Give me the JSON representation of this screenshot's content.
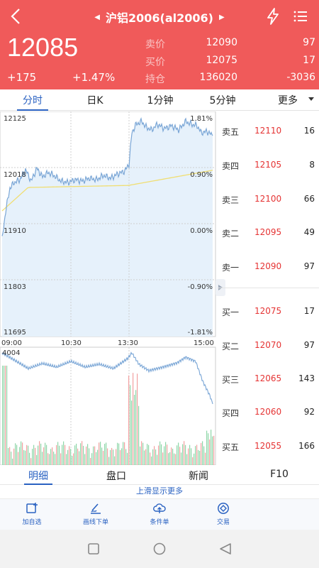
{
  "header": {
    "title": "沪铝2006(al2006)",
    "last_price": "12085",
    "change": "+175",
    "change_pct": "+1.47%",
    "quote_rows": [
      {
        "label": "卖价",
        "price": "12090",
        "volume": "97"
      },
      {
        "label": "买价",
        "price": "12075",
        "volume": "17"
      },
      {
        "label": "持仓",
        "price": "136020",
        "volume": "-3036"
      }
    ]
  },
  "tabs": {
    "items": [
      "分时",
      "日K",
      "1分钟",
      "5分钟",
      "更多"
    ],
    "active": "分时"
  },
  "price_chart": {
    "y_labels": [
      "12125",
      "12018",
      "11910",
      "11803",
      "11695"
    ],
    "pct_labels": [
      "1.81%",
      "0.90%",
      "0.00%",
      "-0.90%",
      "-1.81%"
    ],
    "x_labels": [
      "09:00",
      "10:30",
      "13:30",
      "15:00"
    ]
  },
  "volume_chart": {
    "max_label": "4004"
  },
  "order_book": {
    "asks": [
      {
        "label": "卖五",
        "price": "12110",
        "volume": "16"
      },
      {
        "label": "卖四",
        "price": "12105",
        "volume": "8"
      },
      {
        "label": "卖三",
        "price": "12100",
        "volume": "66"
      },
      {
        "label": "卖二",
        "price": "12095",
        "volume": "49"
      },
      {
        "label": "卖一",
        "price": "12090",
        "volume": "97"
      }
    ],
    "bids": [
      {
        "label": "买一",
        "price": "12075",
        "volume": "17"
      },
      {
        "label": "买二",
        "price": "12070",
        "volume": "97"
      },
      {
        "label": "买三",
        "price": "12065",
        "volume": "143"
      },
      {
        "label": "买四",
        "price": "12060",
        "volume": "92"
      },
      {
        "label": "买五",
        "price": "12055",
        "volume": "166"
      }
    ]
  },
  "info_tabs": {
    "items": [
      "明细",
      "盘口",
      "新闻",
      "F10"
    ],
    "active": "明细"
  },
  "swipe_hint": "上滑显示更多",
  "actions": [
    {
      "label": "加自选",
      "icon": "add-watchlist-icon"
    },
    {
      "label": "画线下单",
      "icon": "draw-line-icon"
    },
    {
      "label": "条件单",
      "icon": "cloud-upload-icon"
    },
    {
      "label": "交易",
      "icon": "trade-icon"
    }
  ],
  "colors": {
    "header_bg": "#f05a5a",
    "accent": "#2a62c2",
    "up": "#e53333",
    "price_line": "#7aa6d6",
    "avg_line": "#f0de72"
  }
}
